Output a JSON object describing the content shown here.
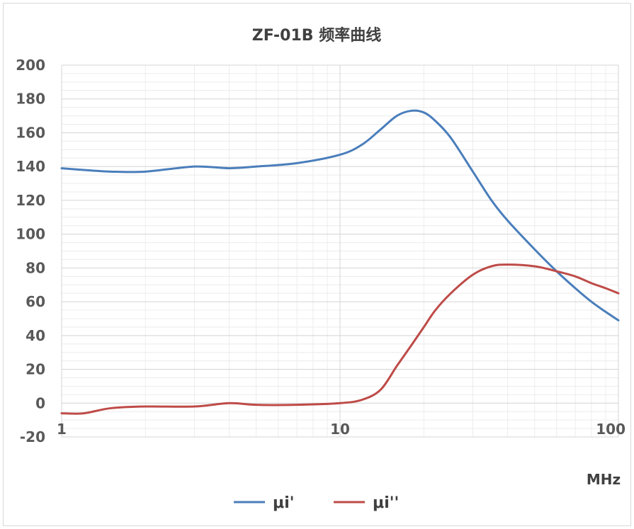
{
  "chart_data": {
    "type": "line",
    "title": "ZF-01B 频率曲线",
    "xlabel": "MHz",
    "ylabel": "",
    "x_scale": "log",
    "xlim": [
      1,
      100
    ],
    "ylim": [
      -20,
      200
    ],
    "x_ticks": [
      "1",
      "10",
      "100"
    ],
    "y_ticks": [
      "200",
      "180",
      "160",
      "140",
      "120",
      "100",
      "80",
      "60",
      "40",
      "20",
      "0",
      "-20"
    ],
    "grid": true,
    "legend_position": "bottom",
    "series": [
      {
        "name": "μi'",
        "color": "#4a7ebb",
        "x": [
          1,
          1.2,
          1.5,
          2,
          3,
          4,
          5,
          7,
          10,
          12,
          14,
          16,
          18,
          20,
          22,
          25,
          30,
          35,
          40,
          50,
          60,
          70,
          80,
          90,
          100
        ],
        "y": [
          139,
          138,
          137,
          137,
          140,
          139,
          140,
          142,
          147,
          153,
          162,
          170,
          173,
          172,
          167,
          157,
          137,
          120,
          108,
          91,
          78,
          68,
          60,
          54,
          49
        ]
      },
      {
        "name": "μi''",
        "color": "#be4b48",
        "x": [
          1,
          1.2,
          1.5,
          2,
          3,
          4,
          5,
          7,
          10,
          12,
          14,
          16,
          18,
          20,
          22,
          25,
          30,
          35,
          40,
          50,
          60,
          70,
          80,
          90,
          100
        ],
        "y": [
          -6,
          -6,
          -3,
          -2,
          -2,
          0,
          -1,
          -1,
          0,
          2,
          8,
          22,
          34,
          45,
          55,
          65,
          76,
          81,
          82,
          81,
          78,
          75,
          71,
          68,
          65
        ]
      }
    ]
  }
}
